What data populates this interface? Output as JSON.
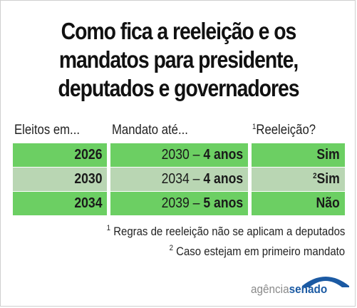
{
  "title": {
    "line1": "Como fica a reeleição e os",
    "line2": "mandatos para presidente,",
    "line3": "deputados e governadores"
  },
  "table": {
    "headers": {
      "elected": "Eleitos em...",
      "term": "Mandato até...",
      "reelection_mark": "1",
      "reelection": "Reeleição?"
    },
    "rows": [
      {
        "elected": "2026",
        "term_year": "2030",
        "term_dash": " – ",
        "term_length": "4 anos",
        "reelection_mark": "",
        "reelection": "Sim"
      },
      {
        "elected": "2030",
        "term_year": "2034",
        "term_dash": " – ",
        "term_length": "4 anos",
        "reelection_mark": "2",
        "reelection": "Sim"
      },
      {
        "elected": "2034",
        "term_year": "2039",
        "term_dash": " – ",
        "term_length": "5 anos",
        "reelection_mark": "",
        "reelection": "Não"
      }
    ]
  },
  "notes": [
    {
      "mark": "1",
      "text": " Regras de reeleição não se aplicam a deputados"
    },
    {
      "mark": "2",
      "text": " Caso estejam em primeiro mandato"
    }
  ],
  "logo": {
    "part1": "agência",
    "part2": "senado"
  },
  "colors": {
    "green_row": "#6ccf63",
    "grey_row": "#b9d6b3",
    "logo_blue": "#1b5aa3"
  }
}
